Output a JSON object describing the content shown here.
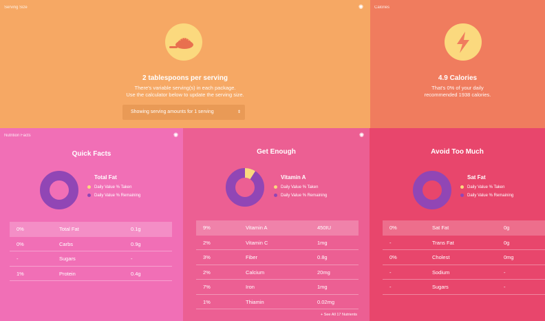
{
  "serving": {
    "corner_label": "Serving Size",
    "bulb_icon": "lightbulb-icon",
    "icon": "spoon-icon",
    "heading": "2 tablespoons per serving",
    "line1": "There's variable serving(s) in each package.",
    "line2": "Use the calculator below to update the serving size.",
    "select_value": "Showing serving amounts for 1 serving"
  },
  "calories": {
    "corner_label": "Calories",
    "icon": "lightning-icon",
    "heading": "4.9 Calories",
    "line1": "That's 0% of your daily",
    "line2": "recommended 1938 calories."
  },
  "legend": {
    "taken": "Daily Value % Taken",
    "remaining": "Daily Value % Remaining"
  },
  "colors": {
    "taken": "#fbd97e",
    "remaining": "#9146b5"
  },
  "quick": {
    "corner_label": "Nutrition Facts",
    "title": "Quick Facts",
    "nutrient": "Total Fat",
    "taken_fraction": 0,
    "rows": [
      {
        "dv": "0%",
        "name": "Total Fat",
        "amount": "0.1g"
      },
      {
        "dv": "0%",
        "name": "Carbs",
        "amount": "0.9g"
      },
      {
        "dv": "-",
        "name": "Sugars",
        "amount": "-"
      },
      {
        "dv": "1%",
        "name": "Protein",
        "amount": "0.4g"
      }
    ]
  },
  "enough": {
    "title": "Get Enough",
    "nutrient": "Vitamin A",
    "taken_fraction": 0.09,
    "see_all": "+ See All 17 Nutrients",
    "rows": [
      {
        "dv": "9%",
        "name": "Vitamin A",
        "amount": "450IU"
      },
      {
        "dv": "2%",
        "name": "Vitamin C",
        "amount": "1mg"
      },
      {
        "dv": "3%",
        "name": "Fiber",
        "amount": "0.8g"
      },
      {
        "dv": "2%",
        "name": "Calcium",
        "amount": "20mg"
      },
      {
        "dv": "7%",
        "name": "Iron",
        "amount": "1mg"
      },
      {
        "dv": "1%",
        "name": "Thiamin",
        "amount": "0.02mg"
      }
    ]
  },
  "avoid": {
    "title": "Avoid Too Much",
    "nutrient": "Sat Fat",
    "taken_fraction": 0,
    "rows": [
      {
        "dv": "0%",
        "name": "Sat Fat",
        "amount": "0g"
      },
      {
        "dv": "-",
        "name": "Trans Fat",
        "amount": "0g"
      },
      {
        "dv": "0%",
        "name": "Cholest",
        "amount": "0mg"
      },
      {
        "dv": "-",
        "name": "Sodium",
        "amount": "-"
      },
      {
        "dv": "-",
        "name": "Sugars",
        "amount": "-"
      }
    ]
  }
}
